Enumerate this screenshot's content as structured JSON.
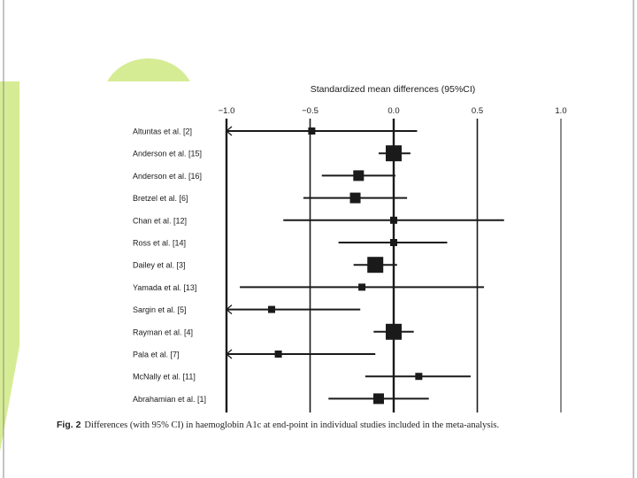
{
  "chart_data": {
    "type": "forest",
    "title": "Standardized mean differences (95%CI)",
    "xlim": [
      -1.0,
      1.0
    ],
    "xticks": [
      -1.0,
      -0.5,
      0.0,
      0.5,
      1.0
    ],
    "xtick_labels": [
      "−1.0",
      "−0.5",
      "0.0",
      "0.5",
      "1.0"
    ],
    "studies": [
      {
        "label": "Altuntas et al. [2]",
        "estimate": -0.49,
        "lower": -1.0,
        "upper": 0.14,
        "weight": 1,
        "lower_arrow": true
      },
      {
        "label": "Anderson et al. [15]",
        "estimate": 0.0,
        "lower": -0.09,
        "upper": 0.1,
        "weight": 3,
        "lower_arrow": false
      },
      {
        "label": "Anderson et al. [16]",
        "estimate": -0.21,
        "lower": -0.43,
        "upper": 0.01,
        "weight": 2,
        "lower_arrow": false
      },
      {
        "label": "Bretzel et al. [6]",
        "estimate": -0.23,
        "lower": -0.54,
        "upper": 0.08,
        "weight": 2,
        "lower_arrow": false
      },
      {
        "label": "Chan et al. [12]",
        "estimate": 0.0,
        "lower": -0.66,
        "upper": 0.66,
        "weight": 1,
        "lower_arrow": false
      },
      {
        "label": "Ross et al. [14]",
        "estimate": 0.0,
        "lower": -0.33,
        "upper": 0.32,
        "weight": 1,
        "lower_arrow": false
      },
      {
        "label": "Dailey et al. [3]",
        "estimate": -0.11,
        "lower": -0.24,
        "upper": 0.02,
        "weight": 3,
        "lower_arrow": false
      },
      {
        "label": "Yamada et al. [13]",
        "estimate": -0.19,
        "lower": -0.92,
        "upper": 0.54,
        "weight": 1,
        "lower_arrow": false
      },
      {
        "label": "Sargin et al. [5]",
        "estimate": -0.73,
        "lower": -1.0,
        "upper": -0.2,
        "weight": 1,
        "lower_arrow": true
      },
      {
        "label": "Rayman et al. [4]",
        "estimate": 0.0,
        "lower": -0.12,
        "upper": 0.12,
        "weight": 3,
        "lower_arrow": false
      },
      {
        "label": "Pala et al. [7]",
        "estimate": -0.69,
        "lower": -1.0,
        "upper": -0.11,
        "weight": 1,
        "lower_arrow": true
      },
      {
        "label": "McNally et al. [11]",
        "estimate": 0.15,
        "lower": -0.17,
        "upper": 0.46,
        "weight": 1,
        "lower_arrow": false
      },
      {
        "label": "Abrahamian et al. [1]",
        "estimate": -0.09,
        "lower": -0.39,
        "upper": 0.21,
        "weight": 2,
        "lower_arrow": false
      }
    ]
  },
  "caption": {
    "label": "Fig. 2",
    "text": "Differences (with 95% CI) in haemoglobin A1c at end-point in individual studies included in the meta-analysis."
  },
  "colors": {
    "accent": "#d6ec94",
    "ink": "#1a1a1a",
    "caption": "#222222",
    "slide_border": "#888888"
  }
}
